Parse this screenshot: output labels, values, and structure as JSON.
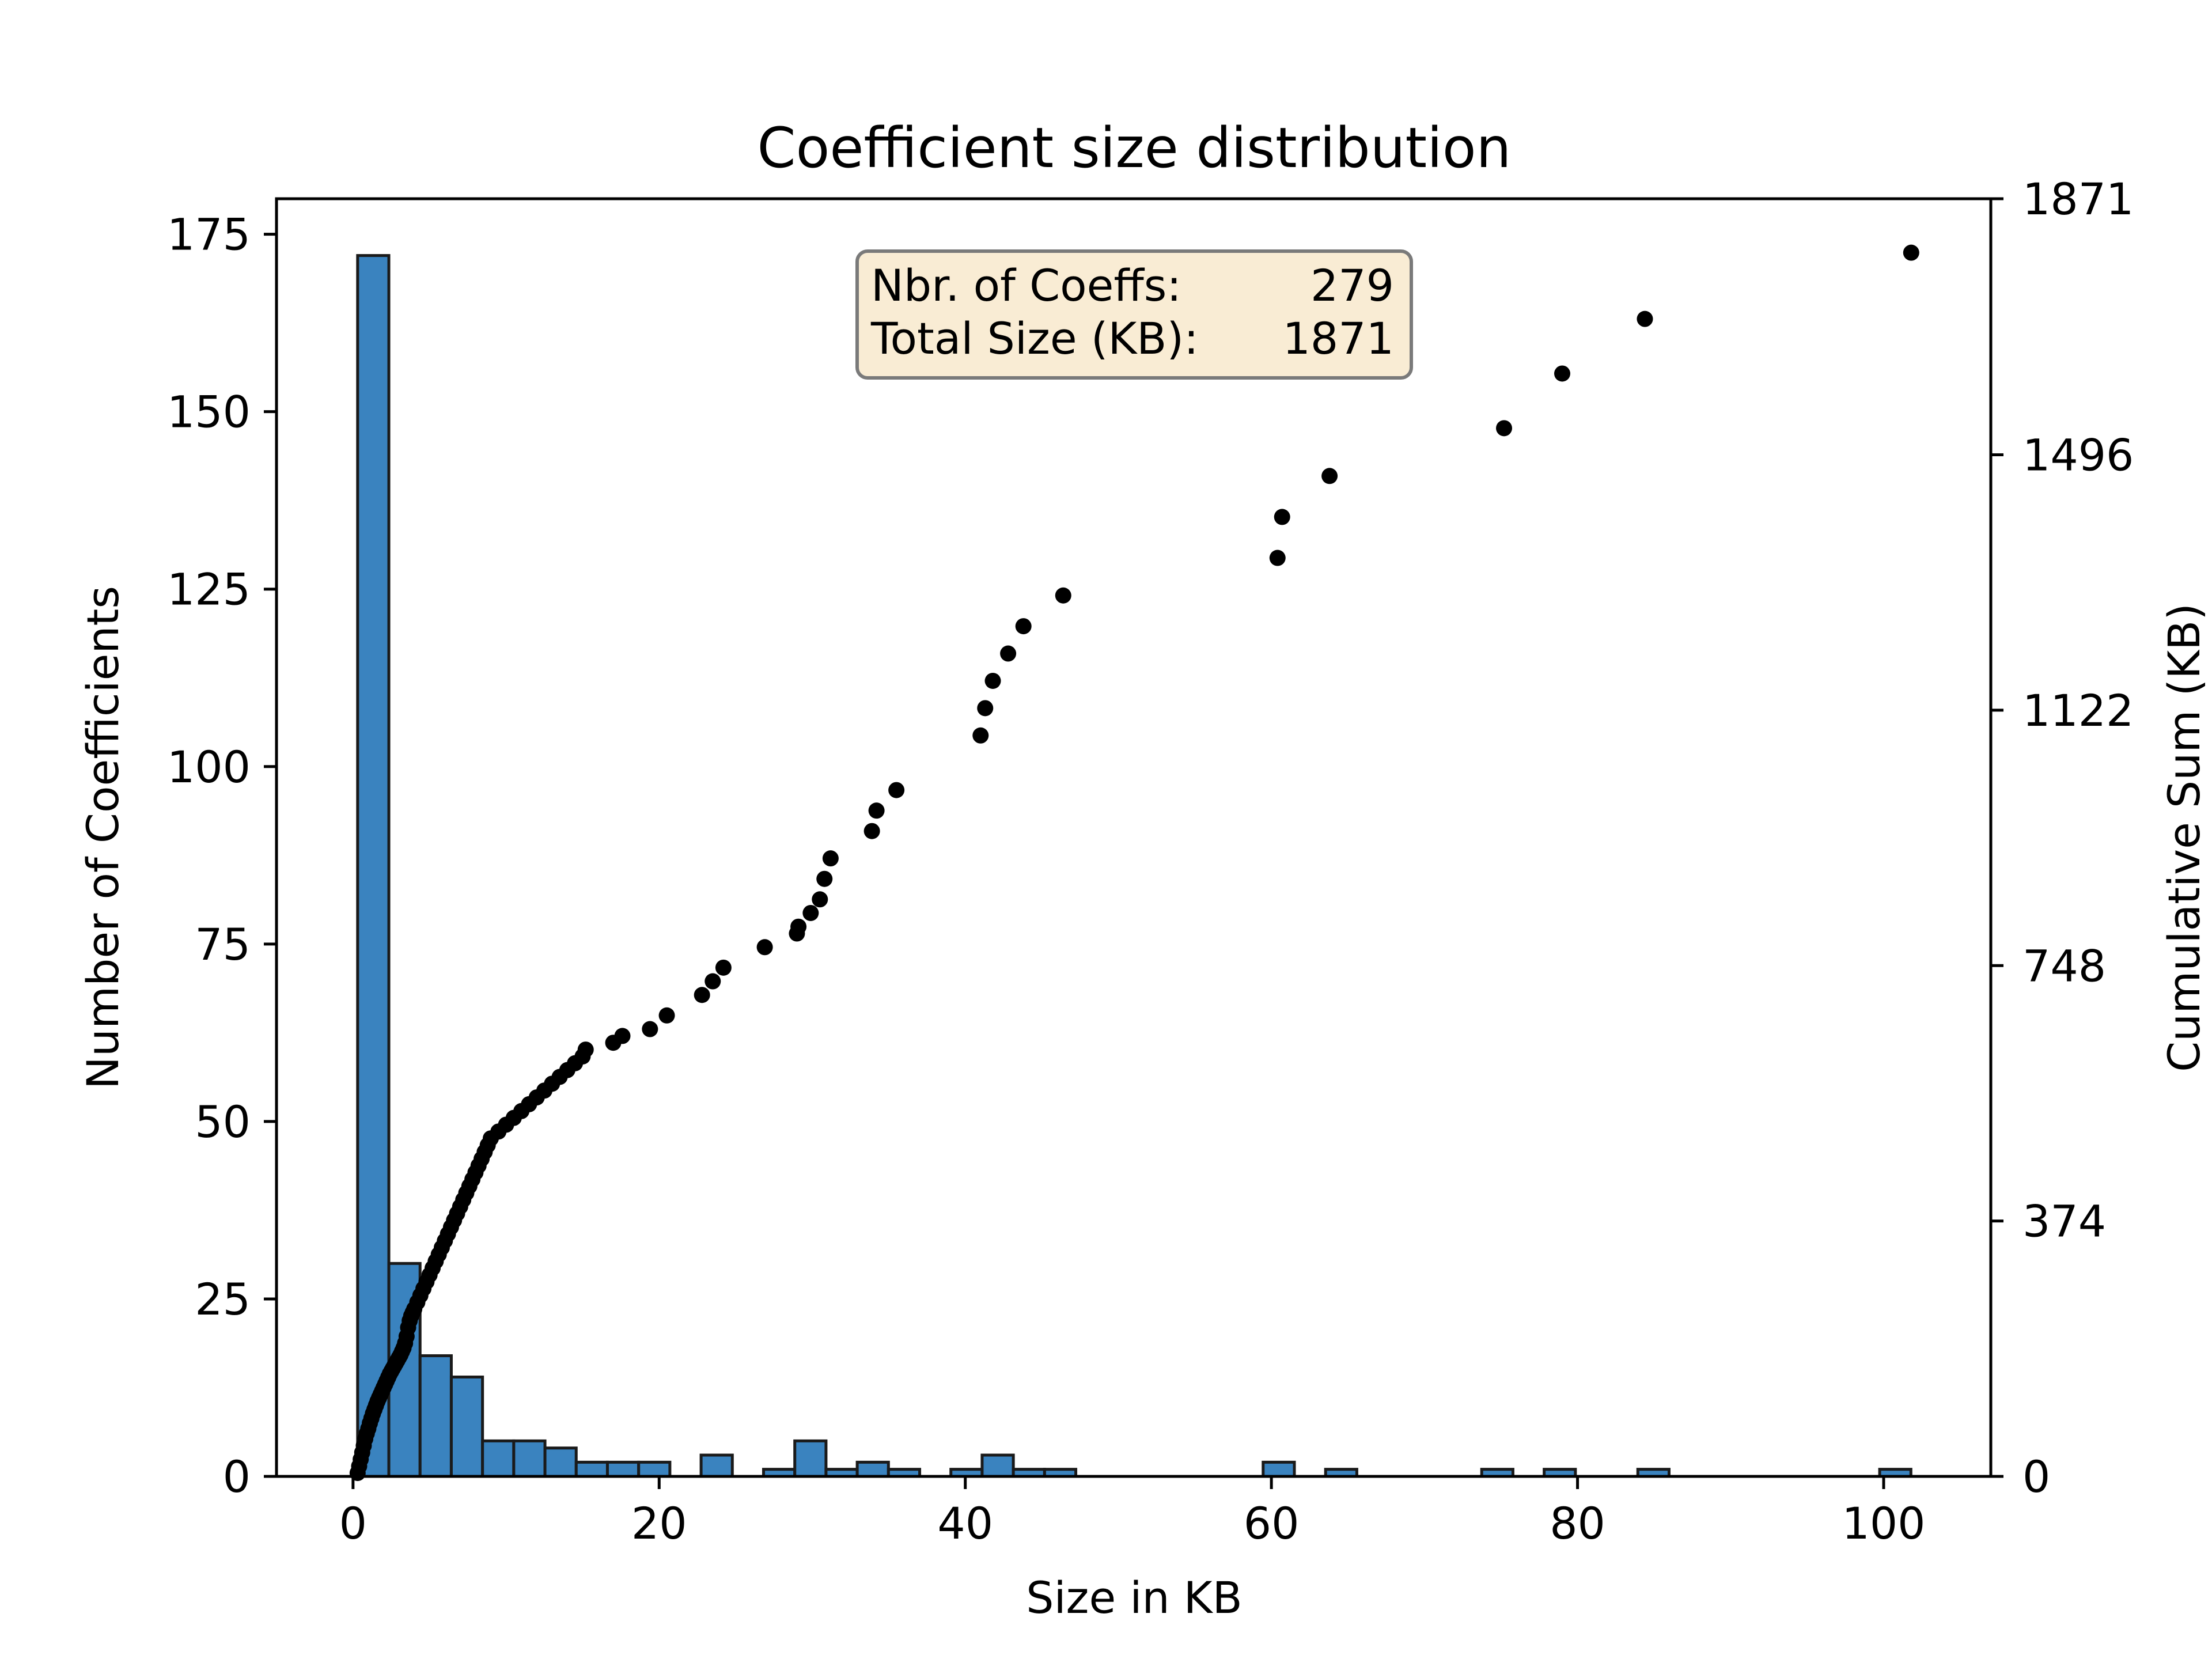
{
  "chart_data": {
    "type": "bar",
    "title": "Coefficient size distribution",
    "xlabel": "Size in KB",
    "ylabel_left": "Number of Coefficients",
    "ylabel_right": "Cumulative Sum (KB)",
    "xlim": [
      -5,
      107
    ],
    "ylim_left": [
      0,
      180
    ],
    "ylim_right": [
      0,
      1871
    ],
    "x_ticks": [
      "0",
      "20",
      "40",
      "60",
      "80",
      "100"
    ],
    "x_tick_values": [
      0,
      20,
      40,
      60,
      80,
      100
    ],
    "y_left_ticks": [
      "0",
      "25",
      "50",
      "75",
      "100",
      "125",
      "150",
      "175"
    ],
    "y_left_tick_values": [
      0,
      25,
      50,
      75,
      100,
      125,
      150,
      175
    ],
    "y_right_ticks": [
      "0",
      "374",
      "748",
      "1122",
      "1496",
      "1871"
    ],
    "y_right_tick_values": [
      0,
      374,
      748,
      1122,
      1496,
      1871
    ],
    "bin_width": 2.04,
    "histogram": {
      "bin_starts": [
        0.3,
        2.34,
        4.38,
        6.42,
        8.46,
        10.5,
        12.54,
        14.58,
        16.62,
        18.66,
        22.74,
        26.82,
        28.86,
        30.9,
        32.94,
        34.98,
        39.06,
        41.1,
        43.14,
        45.18,
        59.46,
        63.54,
        73.74,
        77.82,
        83.94,
        99.74
      ],
      "counts": [
        172,
        30,
        17,
        14,
        5,
        5,
        4,
        2,
        2,
        2,
        3,
        1,
        5,
        1,
        2,
        1,
        1,
        3,
        1,
        1,
        2,
        1,
        1,
        1,
        1,
        1
      ],
      "color": "#3a83bf",
      "edge_color": "#1a1a1a"
    },
    "cumulative_series": {
      "name": "Cumulative Sum (KB)",
      "color": "#000000",
      "x": [
        0.3,
        0.4,
        0.5,
        0.6,
        0.7,
        0.8,
        0.9,
        1.0,
        1.1,
        1.2,
        1.3,
        1.4,
        1.5,
        1.6,
        1.7,
        1.8,
        1.9,
        2.0,
        2.1,
        2.2,
        2.3,
        2.4,
        2.5,
        2.6,
        2.7,
        2.8,
        2.9,
        3.0,
        3.1,
        3.2,
        3.3,
        3.4,
        3.5,
        3.6,
        3.7,
        3.8,
        3.9,
        4.0,
        4.2,
        4.4,
        4.6,
        4.8,
        5.0,
        5.2,
        5.4,
        5.6,
        5.8,
        6.0,
        6.2,
        6.4,
        6.6,
        6.8,
        7.0,
        7.2,
        7.4,
        7.6,
        7.8,
        8.0,
        8.2,
        8.4,
        8.6,
        8.8,
        9.0,
        9.5,
        10.0,
        10.5,
        11.0,
        11.5,
        12.0,
        12.5,
        13.0,
        13.5,
        14.0,
        14.5,
        15.0,
        15.2,
        17.0,
        17.6,
        19.4,
        20.5,
        22.8,
        23.5,
        24.2,
        26.9,
        29.0,
        29.1,
        29.9,
        30.5,
        30.8,
        31.2,
        33.9,
        34.2,
        35.5,
        41.0,
        41.3,
        41.8,
        42.8,
        43.8,
        46.4,
        60.4,
        60.7,
        63.8,
        75.2,
        79.0,
        84.4,
        101.8
      ],
      "y": [
        5,
        15,
        25,
        35,
        45,
        55,
        63,
        70,
        78,
        85,
        92,
        98,
        104,
        110,
        115,
        120,
        125,
        130,
        135,
        140,
        145,
        150,
        154,
        158,
        162,
        166,
        170,
        174,
        178,
        183,
        188,
        195,
        205,
        218,
        228,
        235,
        240,
        245,
        255,
        265,
        275,
        285,
        295,
        305,
        315,
        325,
        335,
        345,
        355,
        365,
        375,
        385,
        395,
        405,
        415,
        425,
        435,
        445,
        455,
        465,
        475,
        485,
        495,
        505,
        515,
        525,
        535,
        545,
        555,
        565,
        575,
        585,
        595,
        605,
        615,
        625,
        635,
        645,
        655,
        675,
        705,
        725,
        745,
        775,
        795,
        805,
        825,
        845,
        875,
        905,
        945,
        975,
        1005,
        1085,
        1125,
        1165,
        1205,
        1245,
        1290,
        1345,
        1405,
        1465,
        1535,
        1615,
        1695,
        1792
      ]
    },
    "stats_box": {
      "rows": [
        {
          "label": "Nbr. of Coeffs:",
          "value": "279"
        },
        {
          "label": "Total Size (KB):",
          "value": "1871"
        }
      ],
      "background": "#f9ecd4",
      "border": "#7a7a7a"
    },
    "ylabel_left_color": "#00007f"
  }
}
